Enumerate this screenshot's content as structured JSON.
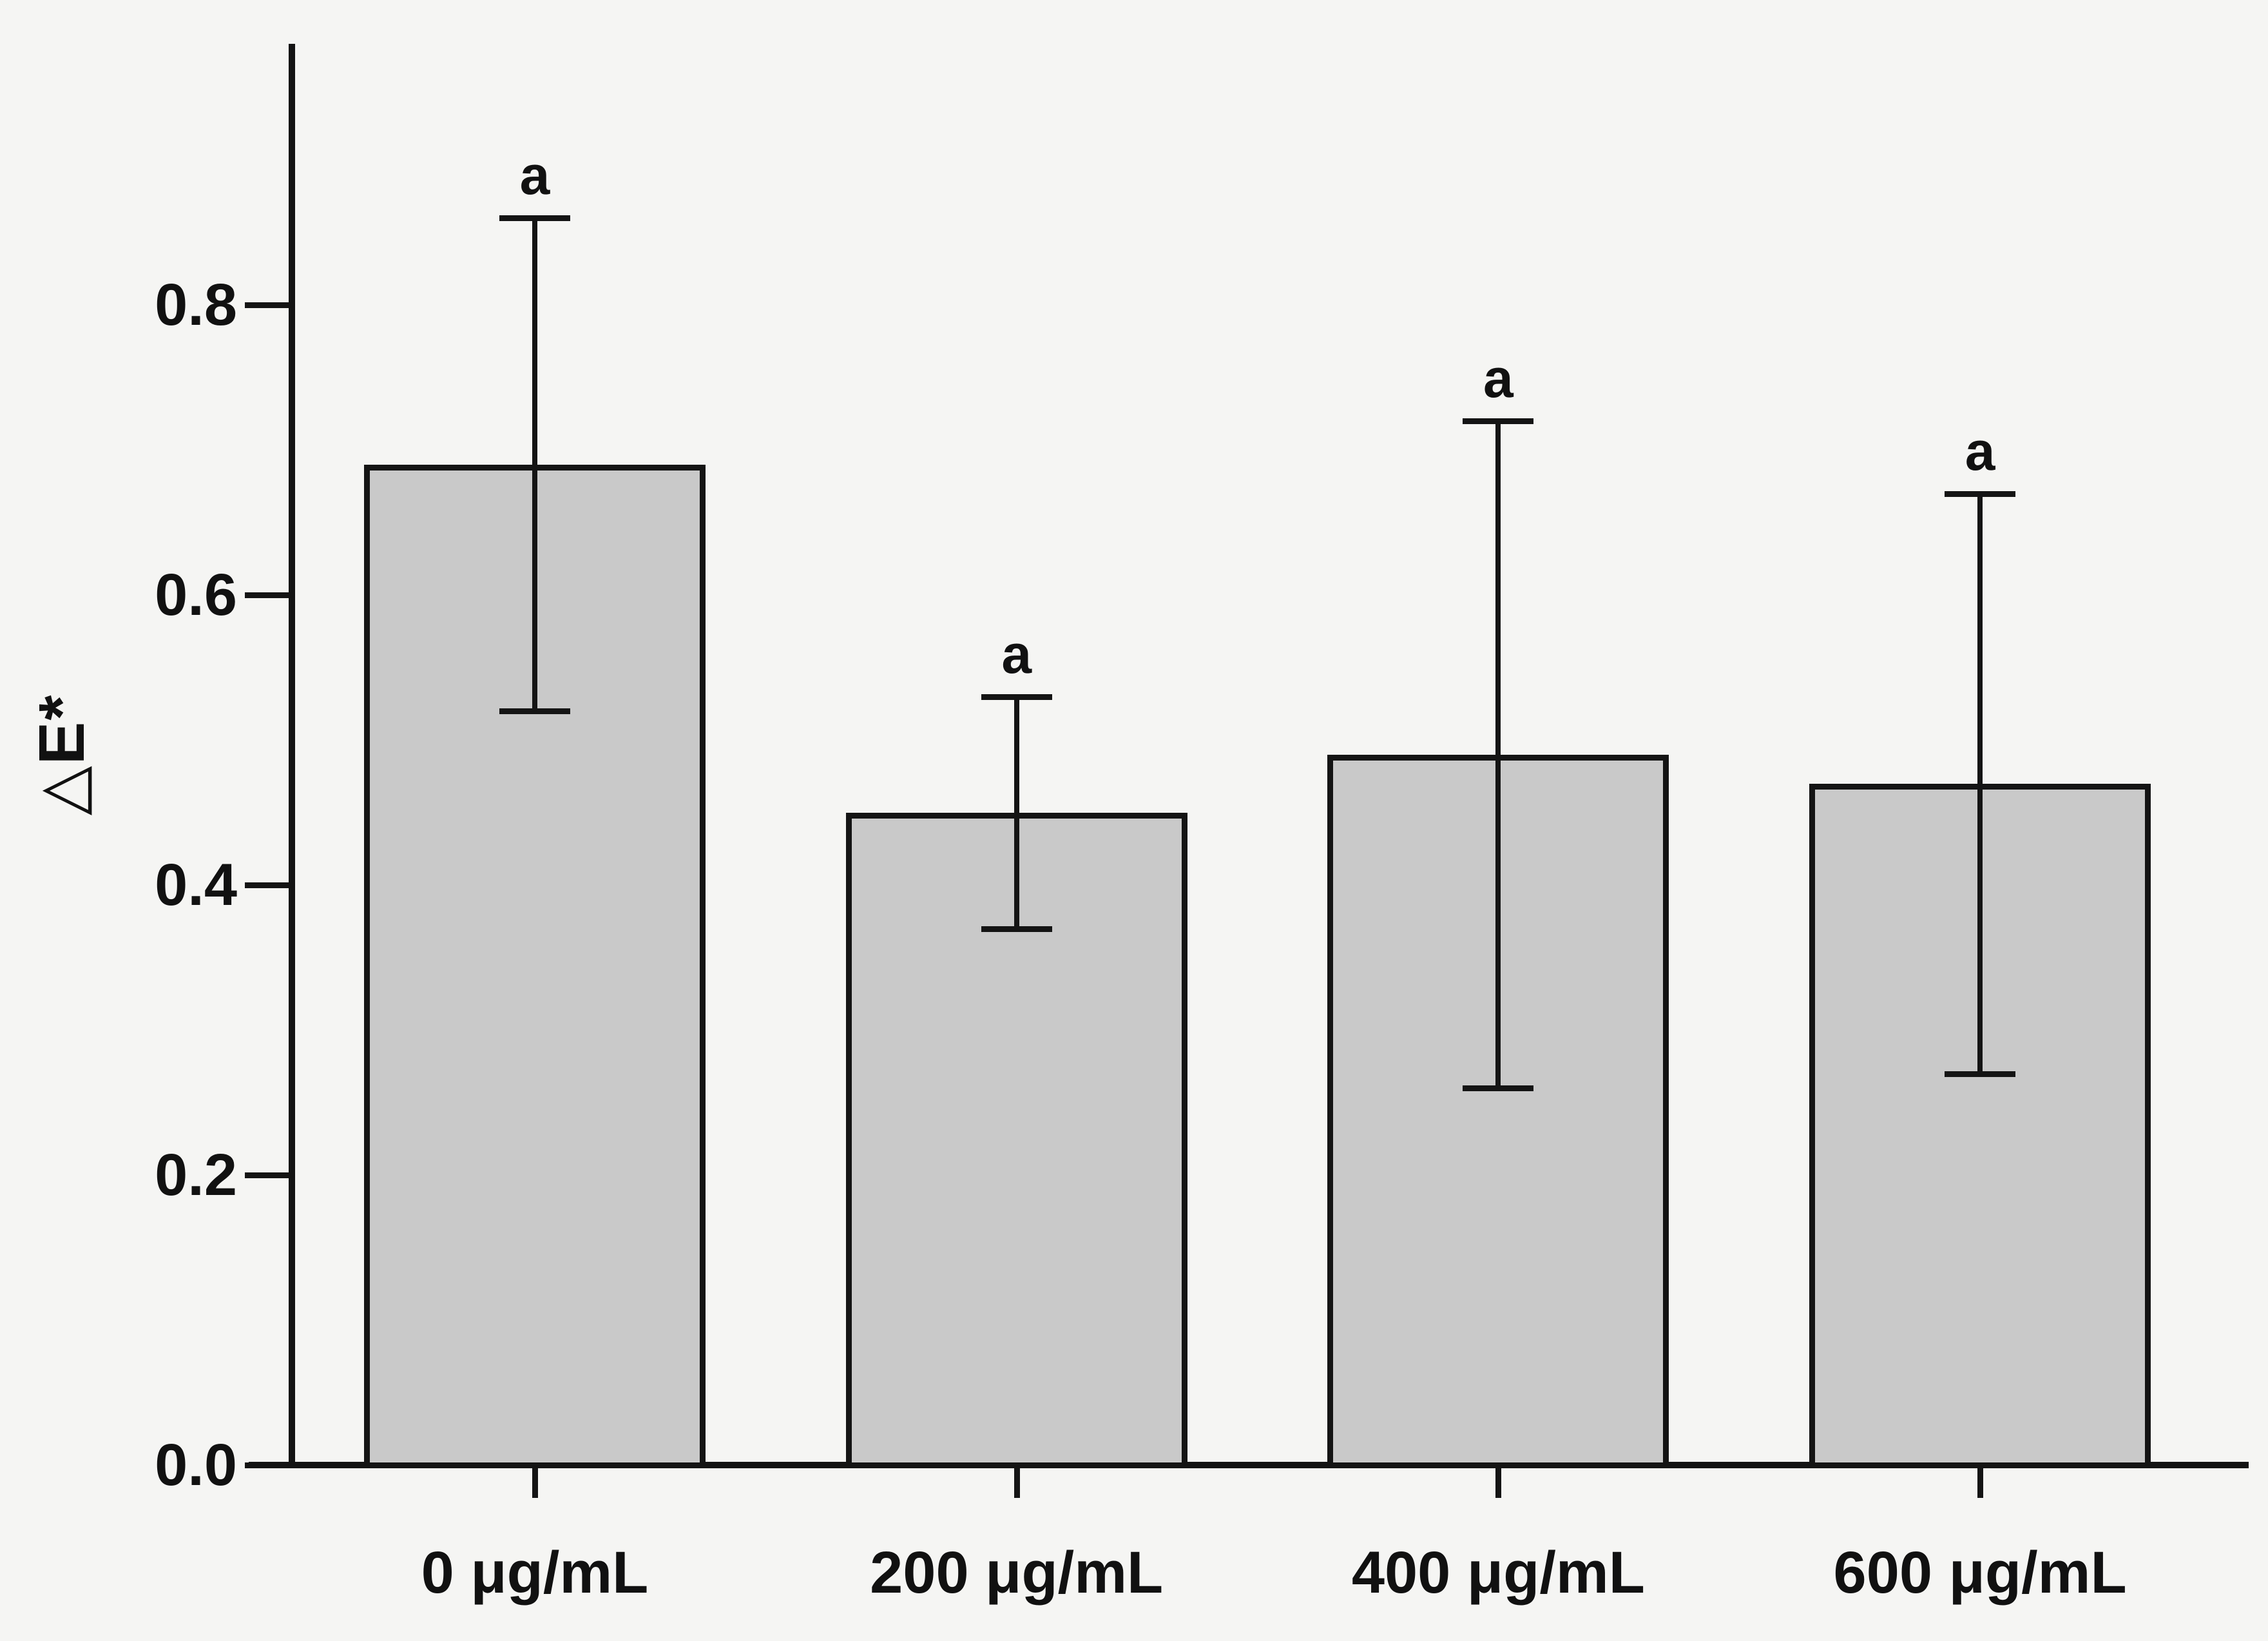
{
  "figure": {
    "background_color": "#f5f5f3",
    "axis_color": "#141414",
    "text_color": "#111111"
  },
  "chart_data": {
    "type": "bar",
    "title": "",
    "xlabel": "",
    "ylabel": "△E*",
    "categories": [
      "0 μg/mL",
      "200 μg/mL",
      "400 μg/mL",
      "600 μg/mL"
    ],
    "values": [
      0.69,
      0.45,
      0.49,
      0.47
    ],
    "error_bars": {
      "type": "symmetric",
      "values": [
        0.17,
        0.08,
        0.23,
        0.2
      ]
    },
    "point_labels": [
      "a",
      "a",
      "a",
      "a"
    ],
    "ytick_values": [
      0.0,
      0.2,
      0.4,
      0.6,
      0.8
    ],
    "ytick_labels": [
      "0.0",
      "0.2",
      "0.4",
      "0.6",
      "0.8"
    ],
    "ylim": [
      0,
      0.98
    ],
    "grid": false,
    "legend": false,
    "bar_color": "#c9c9c9",
    "bar_border_color": "#141414",
    "error_bar_color": "#141414"
  }
}
